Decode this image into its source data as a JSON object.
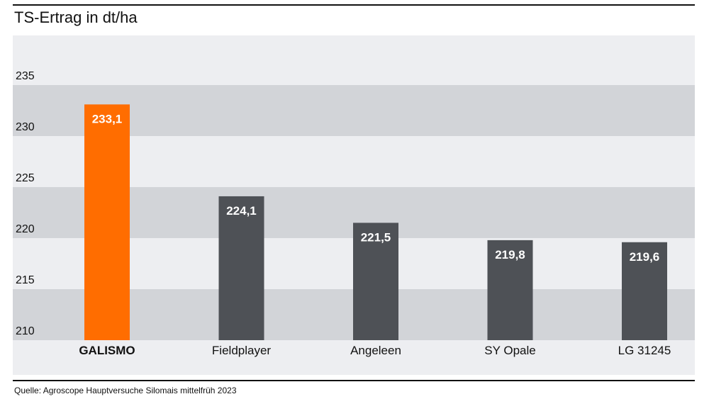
{
  "title": "TS-Ertrag in dt/ha",
  "source": "Quelle: Agroscope Hauptversuche Silomais mittelfrüh 2023",
  "colors": {
    "highlight": "#ff6d00",
    "bar": "#4e5156",
    "band_light": "#edeef1",
    "band_dark": "#d2d4d8",
    "text": "#111111",
    "label": "#ffffff"
  },
  "chart_data": {
    "type": "bar",
    "title": "TS-Ertrag in dt/ha",
    "categories": [
      "GALISMO",
      "Fieldplayer",
      "Angeleen",
      "SY Opale",
      "LG 31245"
    ],
    "values": [
      233.1,
      224.1,
      221.5,
      219.8,
      219.6
    ],
    "value_labels": [
      "233,1",
      "224,1",
      "221,5",
      "219,8",
      "219,6"
    ],
    "highlight_index": 0,
    "yticks": [
      210,
      215,
      220,
      225,
      230,
      235
    ],
    "ylim": [
      208,
      238
    ],
    "xlabel": "",
    "ylabel": "",
    "grid": "alternating horizontal bands",
    "legend": "none"
  }
}
